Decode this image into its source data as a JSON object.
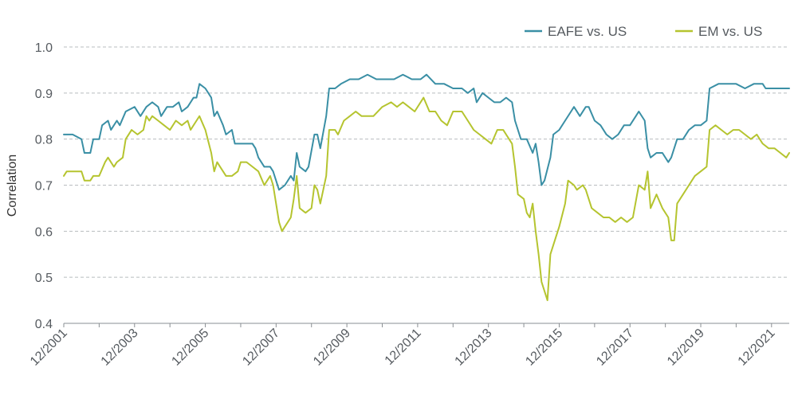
{
  "chart_data": {
    "type": "line",
    "title": "",
    "xlabel": "",
    "ylabel": "Correlation",
    "ylim": [
      0.4,
      1.0
    ],
    "yticks": [
      "0.4",
      "0.5",
      "0.6",
      "0.7",
      "0.8",
      "0.9",
      "1.0"
    ],
    "xticks": [
      "12/2001",
      "12/2003",
      "12/2005",
      "12/2007",
      "12/2009",
      "12/2011",
      "12/2013",
      "12/2015",
      "12/2017",
      "12/2019",
      "12/2021"
    ],
    "x_range": [
      "2001-12",
      "2022-06"
    ],
    "grid": "horizontal dashed",
    "legend_position": "top-right",
    "series": [
      {
        "name": "EAFE vs. US",
        "color": "#3a8fa5",
        "points": [
          [
            "2001-12",
            0.81
          ],
          [
            "2002-03",
            0.81
          ],
          [
            "2002-06",
            0.8
          ],
          [
            "2002-07",
            0.77
          ],
          [
            "2002-09",
            0.77
          ],
          [
            "2002-10",
            0.8
          ],
          [
            "2002-12",
            0.8
          ],
          [
            "2003-01",
            0.83
          ],
          [
            "2003-03",
            0.84
          ],
          [
            "2003-04",
            0.82
          ],
          [
            "2003-06",
            0.84
          ],
          [
            "2003-07",
            0.83
          ],
          [
            "2003-09",
            0.86
          ],
          [
            "2003-12",
            0.87
          ],
          [
            "2004-02",
            0.85
          ],
          [
            "2004-04",
            0.87
          ],
          [
            "2004-06",
            0.88
          ],
          [
            "2004-08",
            0.87
          ],
          [
            "2004-09",
            0.85
          ],
          [
            "2004-11",
            0.87
          ],
          [
            "2005-01",
            0.87
          ],
          [
            "2005-03",
            0.88
          ],
          [
            "2005-04",
            0.86
          ],
          [
            "2005-06",
            0.87
          ],
          [
            "2005-08",
            0.89
          ],
          [
            "2005-09",
            0.89
          ],
          [
            "2005-10",
            0.92
          ],
          [
            "2005-12",
            0.91
          ],
          [
            "2006-02",
            0.89
          ],
          [
            "2006-03",
            0.85
          ],
          [
            "2006-04",
            0.86
          ],
          [
            "2006-06",
            0.83
          ],
          [
            "2006-07",
            0.81
          ],
          [
            "2006-09",
            0.82
          ],
          [
            "2006-10",
            0.79
          ],
          [
            "2007-02",
            0.79
          ],
          [
            "2007-04",
            0.79
          ],
          [
            "2007-05",
            0.78
          ],
          [
            "2007-06",
            0.76
          ],
          [
            "2007-08",
            0.74
          ],
          [
            "2007-10",
            0.74
          ],
          [
            "2007-11",
            0.73
          ],
          [
            "2008-01",
            0.69
          ],
          [
            "2008-03",
            0.7
          ],
          [
            "2008-05",
            0.72
          ],
          [
            "2008-06",
            0.71
          ],
          [
            "2008-07",
            0.77
          ],
          [
            "2008-08",
            0.74
          ],
          [
            "2008-10",
            0.73
          ],
          [
            "2008-11",
            0.74
          ],
          [
            "2009-01",
            0.81
          ],
          [
            "2009-02",
            0.81
          ],
          [
            "2009-03",
            0.78
          ],
          [
            "2009-05",
            0.85
          ],
          [
            "2009-06",
            0.91
          ],
          [
            "2009-08",
            0.91
          ],
          [
            "2009-10",
            0.92
          ],
          [
            "2010-01",
            0.93
          ],
          [
            "2010-04",
            0.93
          ],
          [
            "2010-07",
            0.94
          ],
          [
            "2010-10",
            0.93
          ],
          [
            "2011-01",
            0.93
          ],
          [
            "2011-04",
            0.93
          ],
          [
            "2011-07",
            0.94
          ],
          [
            "2011-10",
            0.93
          ],
          [
            "2012-01",
            0.93
          ],
          [
            "2012-03",
            0.94
          ],
          [
            "2012-06",
            0.92
          ],
          [
            "2012-09",
            0.92
          ],
          [
            "2012-12",
            0.91
          ],
          [
            "2013-03",
            0.91
          ],
          [
            "2013-05",
            0.9
          ],
          [
            "2013-07",
            0.91
          ],
          [
            "2013-08",
            0.88
          ],
          [
            "2013-10",
            0.9
          ],
          [
            "2013-12",
            0.89
          ],
          [
            "2014-02",
            0.88
          ],
          [
            "2014-04",
            0.88
          ],
          [
            "2014-06",
            0.89
          ],
          [
            "2014-08",
            0.88
          ],
          [
            "2014-09",
            0.84
          ],
          [
            "2014-11",
            0.8
          ],
          [
            "2015-01",
            0.8
          ],
          [
            "2015-03",
            0.77
          ],
          [
            "2015-04",
            0.79
          ],
          [
            "2015-05",
            0.75
          ],
          [
            "2015-06",
            0.7
          ],
          [
            "2015-07",
            0.71
          ],
          [
            "2015-09",
            0.76
          ],
          [
            "2015-10",
            0.81
          ],
          [
            "2015-12",
            0.82
          ],
          [
            "2016-02",
            0.84
          ],
          [
            "2016-04",
            0.86
          ],
          [
            "2016-05",
            0.87
          ],
          [
            "2016-07",
            0.85
          ],
          [
            "2016-09",
            0.87
          ],
          [
            "2016-10",
            0.87
          ],
          [
            "2016-12",
            0.84
          ],
          [
            "2017-02",
            0.83
          ],
          [
            "2017-04",
            0.81
          ],
          [
            "2017-06",
            0.8
          ],
          [
            "2017-08",
            0.81
          ],
          [
            "2017-10",
            0.83
          ],
          [
            "2017-12",
            0.83
          ],
          [
            "2018-02",
            0.85
          ],
          [
            "2018-03",
            0.86
          ],
          [
            "2018-05",
            0.84
          ],
          [
            "2018-06",
            0.78
          ],
          [
            "2018-07",
            0.76
          ],
          [
            "2018-09",
            0.77
          ],
          [
            "2018-11",
            0.77
          ],
          [
            "2019-01",
            0.75
          ],
          [
            "2019-02",
            0.76
          ],
          [
            "2019-04",
            0.8
          ],
          [
            "2019-06",
            0.8
          ],
          [
            "2019-08",
            0.82
          ],
          [
            "2019-10",
            0.83
          ],
          [
            "2019-12",
            0.83
          ],
          [
            "2020-02",
            0.84
          ],
          [
            "2020-03",
            0.91
          ],
          [
            "2020-06",
            0.92
          ],
          [
            "2020-09",
            0.92
          ],
          [
            "2020-12",
            0.92
          ],
          [
            "2021-03",
            0.91
          ],
          [
            "2021-06",
            0.92
          ],
          [
            "2021-09",
            0.92
          ],
          [
            "2021-10",
            0.91
          ],
          [
            "2022-01",
            0.91
          ],
          [
            "2022-04",
            0.91
          ],
          [
            "2022-06",
            0.91
          ]
        ]
      },
      {
        "name": "EM vs. US",
        "color": "#b5c42f",
        "points": [
          [
            "2001-12",
            0.72
          ],
          [
            "2002-01",
            0.73
          ],
          [
            "2002-06",
            0.73
          ],
          [
            "2002-07",
            0.71
          ],
          [
            "2002-09",
            0.71
          ],
          [
            "2002-10",
            0.72
          ],
          [
            "2002-12",
            0.72
          ],
          [
            "2003-02",
            0.75
          ],
          [
            "2003-03",
            0.76
          ],
          [
            "2003-05",
            0.74
          ],
          [
            "2003-06",
            0.75
          ],
          [
            "2003-08",
            0.76
          ],
          [
            "2003-09",
            0.8
          ],
          [
            "2003-11",
            0.82
          ],
          [
            "2004-01",
            0.81
          ],
          [
            "2004-03",
            0.82
          ],
          [
            "2004-04",
            0.85
          ],
          [
            "2004-05",
            0.84
          ],
          [
            "2004-06",
            0.85
          ],
          [
            "2004-08",
            0.84
          ],
          [
            "2004-10",
            0.83
          ],
          [
            "2004-12",
            0.82
          ],
          [
            "2005-02",
            0.84
          ],
          [
            "2005-04",
            0.83
          ],
          [
            "2005-06",
            0.84
          ],
          [
            "2005-07",
            0.82
          ],
          [
            "2005-09",
            0.84
          ],
          [
            "2005-10",
            0.85
          ],
          [
            "2005-12",
            0.82
          ],
          [
            "2006-02",
            0.77
          ],
          [
            "2006-03",
            0.73
          ],
          [
            "2006-04",
            0.75
          ],
          [
            "2006-05",
            0.74
          ],
          [
            "2006-07",
            0.72
          ],
          [
            "2006-09",
            0.72
          ],
          [
            "2006-11",
            0.73
          ],
          [
            "2006-12",
            0.75
          ],
          [
            "2007-02",
            0.75
          ],
          [
            "2007-04",
            0.74
          ],
          [
            "2007-06",
            0.73
          ],
          [
            "2007-08",
            0.7
          ],
          [
            "2007-09",
            0.71
          ],
          [
            "2007-10",
            0.72
          ],
          [
            "2007-11",
            0.7
          ],
          [
            "2008-01",
            0.62
          ],
          [
            "2008-02",
            0.6
          ],
          [
            "2008-04",
            0.62
          ],
          [
            "2008-05",
            0.63
          ],
          [
            "2008-06",
            0.67
          ],
          [
            "2008-07",
            0.72
          ],
          [
            "2008-08",
            0.65
          ],
          [
            "2008-10",
            0.64
          ],
          [
            "2008-12",
            0.65
          ],
          [
            "2009-01",
            0.7
          ],
          [
            "2009-02",
            0.69
          ],
          [
            "2009-03",
            0.66
          ],
          [
            "2009-05",
            0.72
          ],
          [
            "2009-06",
            0.82
          ],
          [
            "2009-08",
            0.82
          ],
          [
            "2009-09",
            0.81
          ],
          [
            "2009-11",
            0.84
          ],
          [
            "2010-01",
            0.85
          ],
          [
            "2010-03",
            0.86
          ],
          [
            "2010-05",
            0.85
          ],
          [
            "2010-07",
            0.85
          ],
          [
            "2010-09",
            0.85
          ],
          [
            "2010-12",
            0.87
          ],
          [
            "2011-03",
            0.88
          ],
          [
            "2011-05",
            0.87
          ],
          [
            "2011-07",
            0.88
          ],
          [
            "2011-09",
            0.87
          ],
          [
            "2011-11",
            0.86
          ],
          [
            "2012-02",
            0.89
          ],
          [
            "2012-04",
            0.86
          ],
          [
            "2012-06",
            0.86
          ],
          [
            "2012-08",
            0.84
          ],
          [
            "2012-10",
            0.83
          ],
          [
            "2012-12",
            0.86
          ],
          [
            "2013-03",
            0.86
          ],
          [
            "2013-05",
            0.84
          ],
          [
            "2013-07",
            0.82
          ],
          [
            "2013-09",
            0.81
          ],
          [
            "2013-11",
            0.8
          ],
          [
            "2014-01",
            0.79
          ],
          [
            "2014-03",
            0.82
          ],
          [
            "2014-05",
            0.82
          ],
          [
            "2014-07",
            0.8
          ],
          [
            "2014-08",
            0.79
          ],
          [
            "2014-09",
            0.74
          ],
          [
            "2014-10",
            0.68
          ],
          [
            "2014-12",
            0.67
          ],
          [
            "2015-01",
            0.64
          ],
          [
            "2015-02",
            0.63
          ],
          [
            "2015-03",
            0.66
          ],
          [
            "2015-04",
            0.6
          ],
          [
            "2015-05",
            0.55
          ],
          [
            "2015-06",
            0.49
          ],
          [
            "2015-08",
            0.45
          ],
          [
            "2015-09",
            0.55
          ],
          [
            "2015-10",
            0.57
          ],
          [
            "2015-12",
            0.61
          ],
          [
            "2016-02",
            0.66
          ],
          [
            "2016-03",
            0.71
          ],
          [
            "2016-05",
            0.7
          ],
          [
            "2016-06",
            0.69
          ],
          [
            "2016-08",
            0.7
          ],
          [
            "2016-09",
            0.69
          ],
          [
            "2016-11",
            0.65
          ],
          [
            "2017-01",
            0.64
          ],
          [
            "2017-03",
            0.63
          ],
          [
            "2017-05",
            0.63
          ],
          [
            "2017-07",
            0.62
          ],
          [
            "2017-09",
            0.63
          ],
          [
            "2017-11",
            0.62
          ],
          [
            "2018-01",
            0.63
          ],
          [
            "2018-03",
            0.7
          ],
          [
            "2018-05",
            0.69
          ],
          [
            "2018-06",
            0.73
          ],
          [
            "2018-07",
            0.65
          ],
          [
            "2018-09",
            0.68
          ],
          [
            "2018-11",
            0.65
          ],
          [
            "2019-01",
            0.63
          ],
          [
            "2019-02",
            0.58
          ],
          [
            "2019-03",
            0.58
          ],
          [
            "2019-04",
            0.66
          ],
          [
            "2019-06",
            0.68
          ],
          [
            "2019-08",
            0.7
          ],
          [
            "2019-10",
            0.72
          ],
          [
            "2019-12",
            0.73
          ],
          [
            "2020-02",
            0.74
          ],
          [
            "2020-03",
            0.82
          ],
          [
            "2020-05",
            0.83
          ],
          [
            "2020-07",
            0.82
          ],
          [
            "2020-09",
            0.81
          ],
          [
            "2020-11",
            0.82
          ],
          [
            "2021-01",
            0.82
          ],
          [
            "2021-03",
            0.81
          ],
          [
            "2021-05",
            0.8
          ],
          [
            "2021-07",
            0.81
          ],
          [
            "2021-09",
            0.79
          ],
          [
            "2021-11",
            0.78
          ],
          [
            "2022-01",
            0.78
          ],
          [
            "2022-03",
            0.77
          ],
          [
            "2022-05",
            0.76
          ],
          [
            "2022-06",
            0.77
          ]
        ]
      }
    ]
  }
}
